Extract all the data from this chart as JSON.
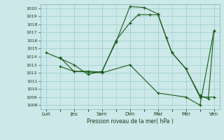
{
  "title": "",
  "xlabel": "Pression niveau de la mer( hPa )",
  "background_color": "#cce8e8",
  "grid_color": "#99cccc",
  "line_color": "#1a5c1a",
  "ylim": [
    1007.5,
    1020.5
  ],
  "yticks": [
    1008,
    1009,
    1010,
    1011,
    1012,
    1013,
    1014,
    1015,
    1016,
    1017,
    1018,
    1019,
    1020
  ],
  "xtick_labels": [
    "Lun",
    "Jeu",
    "Sam",
    "Dim",
    "Mar",
    "Mer",
    "Ven"
  ],
  "xtick_positions": [
    0,
    1,
    2,
    3,
    4,
    5,
    6
  ],
  "line1": {
    "x": [
      0.0,
      0.5,
      1.0,
      1.5,
      2.0,
      2.5,
      3.0,
      3.5,
      4.0,
      4.3,
      4.5,
      5.0,
      5.5,
      6.0
    ],
    "y": [
      1014.5,
      1013.8,
      1013.0,
      1011.8,
      1012.2,
      1015.8,
      1020.2,
      1020.1,
      1019.3,
      1016.3,
      1014.5,
      1012.5,
      1009.0,
      1009.0
    ]
  },
  "line2": {
    "x": [
      0.5,
      1.0,
      1.5,
      2.0,
      2.5,
      3.0,
      3.3,
      3.7,
      4.0,
      4.5,
      5.0,
      5.5,
      5.8,
      6.0
    ],
    "y": [
      1013.9,
      1012.2,
      1012.2,
      1012.1,
      1016.0,
      1018.2,
      1019.2,
      1019.2,
      1019.2,
      1014.5,
      1012.5,
      1009.2,
      1008.8,
      1017.2
    ]
  },
  "line3": {
    "x": [
      0.5,
      1.0,
      1.5,
      2.0,
      3.0,
      4.0,
      5.0,
      5.5,
      6.0
    ],
    "y": [
      1012.8,
      1012.2,
      1012.1,
      1012.0,
      1013.0,
      1009.5,
      1009.0,
      1008.0,
      1017.2
    ]
  }
}
